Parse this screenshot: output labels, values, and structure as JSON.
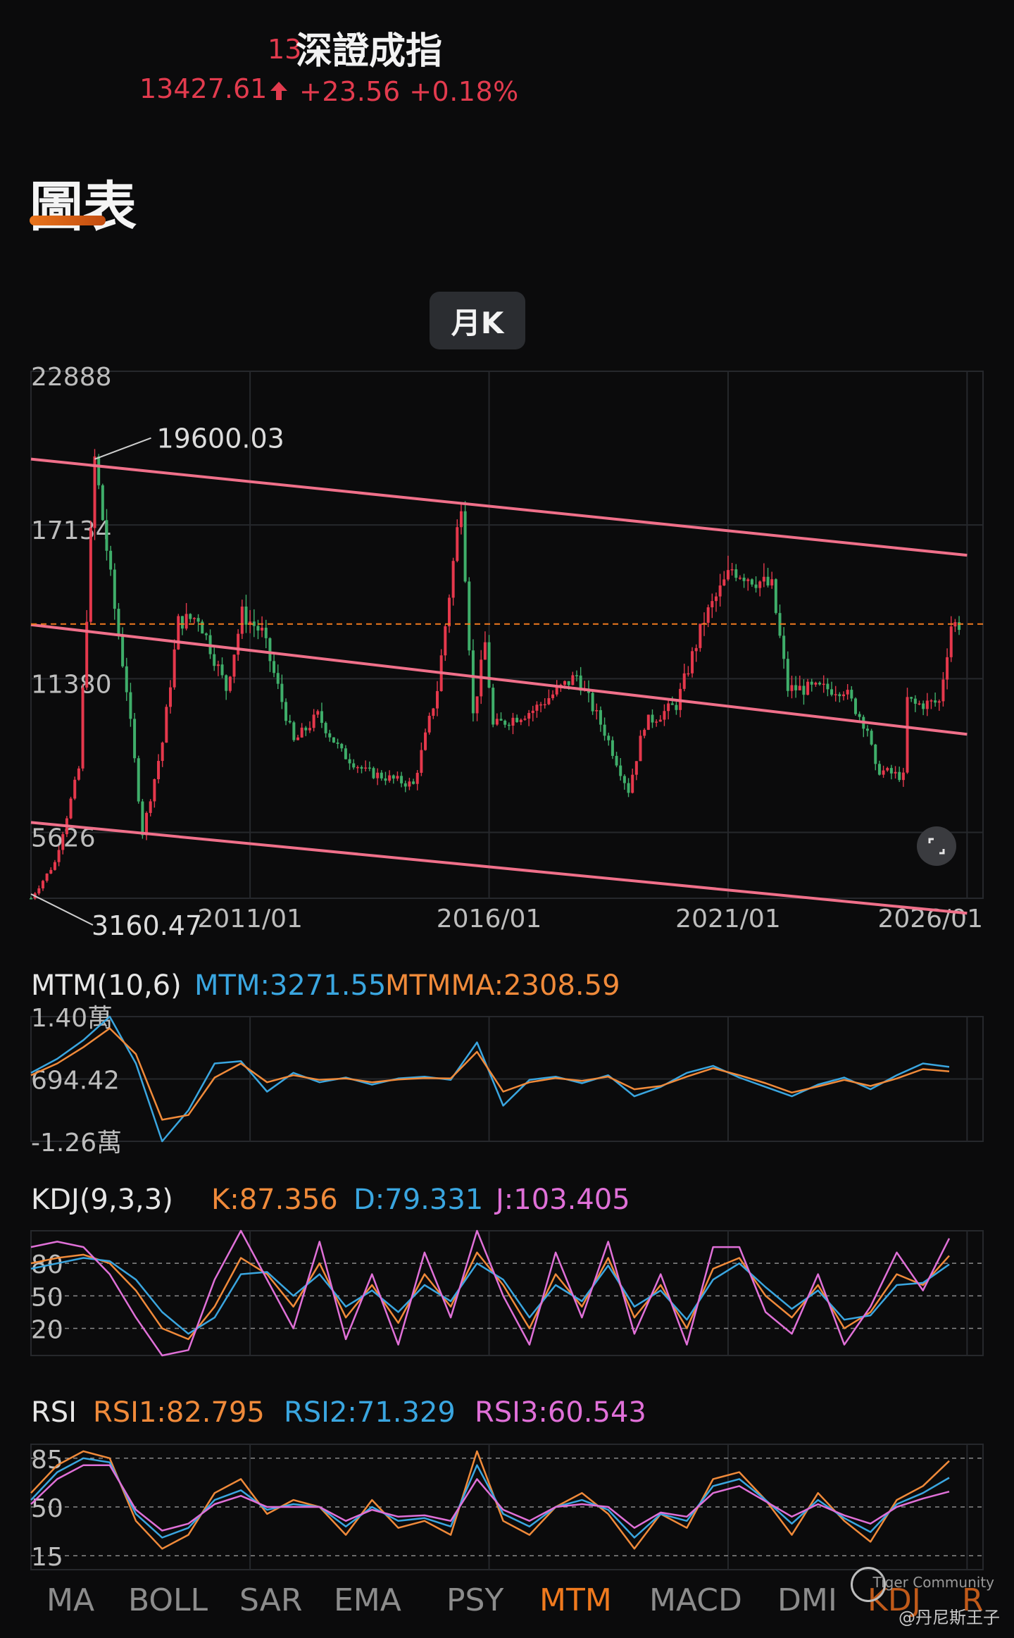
{
  "header": {
    "name": "深證成指",
    "name_fragment": "13",
    "price": "13427.61",
    "change": "+23.56 +0.18%",
    "color_down": "#e23b4e"
  },
  "section": {
    "title": "圖表"
  },
  "period": {
    "label": "月K"
  },
  "chart_data": [
    {
      "type": "candlestick",
      "title": "",
      "y_ticks": [
        "22888",
        "17134",
        "11380",
        "5626"
      ],
      "ylim": [
        3160.47,
        22888
      ],
      "x_ticks": [
        "2011/01",
        "2016/01",
        "2021/01",
        "2026/01"
      ],
      "annotations": {
        "high": "19600.03",
        "low": "3160.47"
      },
      "current_level": 13427.61,
      "grid": true,
      "close_series": [
        {
          "x": "2006/06",
          "y": 3160
        },
        {
          "x": "2006/12",
          "y": 4500
        },
        {
          "x": "2007/06",
          "y": 8000
        },
        {
          "x": "2007/10",
          "y": 19600
        },
        {
          "x": "2008/03",
          "y": 14000
        },
        {
          "x": "2008/06",
          "y": 11000
        },
        {
          "x": "2008/10",
          "y": 5600
        },
        {
          "x": "2009/03",
          "y": 9000
        },
        {
          "x": "2009/07",
          "y": 13500
        },
        {
          "x": "2009/12",
          "y": 13700
        },
        {
          "x": "2010/07",
          "y": 11000
        },
        {
          "x": "2010/11",
          "y": 13800
        },
        {
          "x": "2011/04",
          "y": 13100
        },
        {
          "x": "2011/12",
          "y": 9000
        },
        {
          "x": "2012/06",
          "y": 10000
        },
        {
          "x": "2012/12",
          "y": 8600
        },
        {
          "x": "2013/06",
          "y": 7900
        },
        {
          "x": "2014/06",
          "y": 7400
        },
        {
          "x": "2014/12",
          "y": 11000
        },
        {
          "x": "2015/06",
          "y": 18100
        },
        {
          "x": "2015/09",
          "y": 10000
        },
        {
          "x": "2015/12",
          "y": 12700
        },
        {
          "x": "2016/02",
          "y": 9600
        },
        {
          "x": "2016/12",
          "y": 10200
        },
        {
          "x": "2017/11",
          "y": 11500
        },
        {
          "x": "2018/06",
          "y": 9400
        },
        {
          "x": "2018/12",
          "y": 7200
        },
        {
          "x": "2019/04",
          "y": 9700
        },
        {
          "x": "2019/12",
          "y": 10400
        },
        {
          "x": "2020/07",
          "y": 13600
        },
        {
          "x": "2021/02",
          "y": 15500
        },
        {
          "x": "2021/12",
          "y": 14800
        },
        {
          "x": "2022/04",
          "y": 11000
        },
        {
          "x": "2022/12",
          "y": 11000
        },
        {
          "x": "2023/06",
          "y": 11000
        },
        {
          "x": "2023/12",
          "y": 9500
        },
        {
          "x": "2024/02",
          "y": 8000
        },
        {
          "x": "2024/09",
          "y": 7700
        },
        {
          "x": "2024/10",
          "y": 10600
        },
        {
          "x": "2024/12",
          "y": 10400
        },
        {
          "x": "2025/06",
          "y": 10500
        },
        {
          "x": "2025/09",
          "y": 13400
        },
        {
          "x": "2025/11",
          "y": 13427
        }
      ],
      "trend_lines": [
        {
          "from": {
            "x": "2006/06",
            "y": 19600
          },
          "to": {
            "x": "2026/01",
            "y": 16000
          }
        },
        {
          "from": {
            "x": "2006/06",
            "y": 13400
          },
          "to": {
            "x": "2026/01",
            "y": 9300
          }
        },
        {
          "from": {
            "x": "2006/06",
            "y": 6000
          },
          "to": {
            "x": "2026/01",
            "y": 2600
          }
        }
      ],
      "colors": {
        "up": "#e5384c",
        "down": "#3fae6a",
        "trend": "#f0708a",
        "level": "#f07a1e"
      }
    },
    {
      "type": "line",
      "title": "MTM(10,6)",
      "series": [
        {
          "name": "MTM:3271.55",
          "color": "#3aa6e0",
          "values": [
            2000,
            5000,
            9000,
            14000,
            4000,
            -12600,
            -6000,
            4000,
            4500,
            -2000,
            2000,
            0,
            1000,
            -500,
            800,
            1200,
            500,
            8500,
            -5000,
            500,
            1200,
            -200,
            1500,
            -3000,
            -1000,
            2000,
            3500,
            1000,
            -1000,
            -3000,
            -500,
            1000,
            -1500,
            1500,
            4000,
            3271
          ]
        },
        {
          "name": "MTMMA:2308.59",
          "color": "#f08a3a",
          "values": [
            1500,
            4000,
            7500,
            11500,
            6000,
            -8000,
            -7000,
            1000,
            4000,
            0,
            1500,
            500,
            800,
            0,
            600,
            900,
            800,
            6500,
            -2000,
            0,
            900,
            300,
            1200,
            -1500,
            -800,
            1200,
            3000,
            1500,
            -200,
            -2200,
            -900,
            500,
            -800,
            800,
            2800,
            2308
          ]
        }
      ],
      "y_ticks": [
        "1.40萬",
        "694.42",
        "-1.26萬"
      ],
      "ylim": [
        -12600,
        14000
      ]
    },
    {
      "type": "line",
      "title": "KDJ(9,3,3)",
      "series": [
        {
          "name": "K:87.356",
          "color": "#f08a3a",
          "values": [
            80,
            85,
            88,
            80,
            55,
            20,
            10,
            40,
            85,
            70,
            40,
            80,
            30,
            60,
            25,
            70,
            40,
            90,
            60,
            20,
            70,
            40,
            85,
            30,
            60,
            20,
            75,
            85,
            50,
            30,
            60,
            20,
            35,
            70,
            60,
            87
          ]
        },
        {
          "name": "D:79.331",
          "color": "#3aa6e0",
          "values": [
            75,
            80,
            85,
            82,
            65,
            35,
            15,
            30,
            70,
            72,
            50,
            70,
            40,
            55,
            35,
            60,
            45,
            80,
            65,
            30,
            60,
            45,
            78,
            40,
            55,
            28,
            65,
            80,
            58,
            38,
            55,
            28,
            32,
            60,
            62,
            79
          ]
        },
        {
          "name": "J:103.405",
          "color": "#e070d8",
          "values": [
            95,
            100,
            95,
            70,
            30,
            -5,
            0,
            65,
            110,
            65,
            20,
            100,
            10,
            70,
            5,
            90,
            30,
            110,
            50,
            5,
            90,
            30,
            100,
            15,
            70,
            5,
            95,
            95,
            35,
            15,
            70,
            5,
            40,
            90,
            55,
            103
          ]
        }
      ],
      "y_ticks": [
        "80",
        "50",
        "20"
      ],
      "ylim": [
        -5,
        110
      ]
    },
    {
      "type": "line",
      "title": "RSI",
      "series": [
        {
          "name": "RSI1:82.795",
          "color": "#f08a3a",
          "values": [
            60,
            80,
            90,
            85,
            40,
            20,
            30,
            60,
            70,
            45,
            55,
            50,
            30,
            55,
            35,
            40,
            30,
            90,
            40,
            30,
            50,
            60,
            45,
            20,
            45,
            35,
            70,
            75,
            55,
            30,
            60,
            40,
            25,
            55,
            65,
            83
          ]
        },
        {
          "name": "RSI2:71.329",
          "color": "#3aa6e0",
          "values": [
            55,
            75,
            85,
            82,
            45,
            28,
            35,
            55,
            62,
            48,
            52,
            50,
            36,
            50,
            40,
            42,
            36,
            80,
            45,
            36,
            50,
            55,
            48,
            28,
            45,
            40,
            65,
            70,
            55,
            38,
            55,
            42,
            32,
            52,
            60,
            71
          ]
        },
        {
          "name": "RSI3:60.543",
          "color": "#e070d8",
          "values": [
            52,
            70,
            80,
            80,
            48,
            33,
            38,
            52,
            58,
            50,
            50,
            50,
            40,
            48,
            43,
            44,
            40,
            70,
            48,
            40,
            50,
            52,
            50,
            35,
            46,
            43,
            60,
            65,
            54,
            43,
            52,
            44,
            38,
            50,
            56,
            61
          ]
        }
      ],
      "y_ticks": [
        "85",
        "50",
        "15"
      ],
      "ylim": [
        5,
        95
      ]
    }
  ],
  "tabs": [
    "MA",
    "BOLL",
    "SAR",
    "EMA",
    "PSY",
    "MTM",
    "MACD",
    "DMI",
    "KDJ",
    "R"
  ],
  "active_tab": "MTM",
  "watermark": {
    "brand": "Tiger Community",
    "handle": "@丹尼斯王子"
  }
}
